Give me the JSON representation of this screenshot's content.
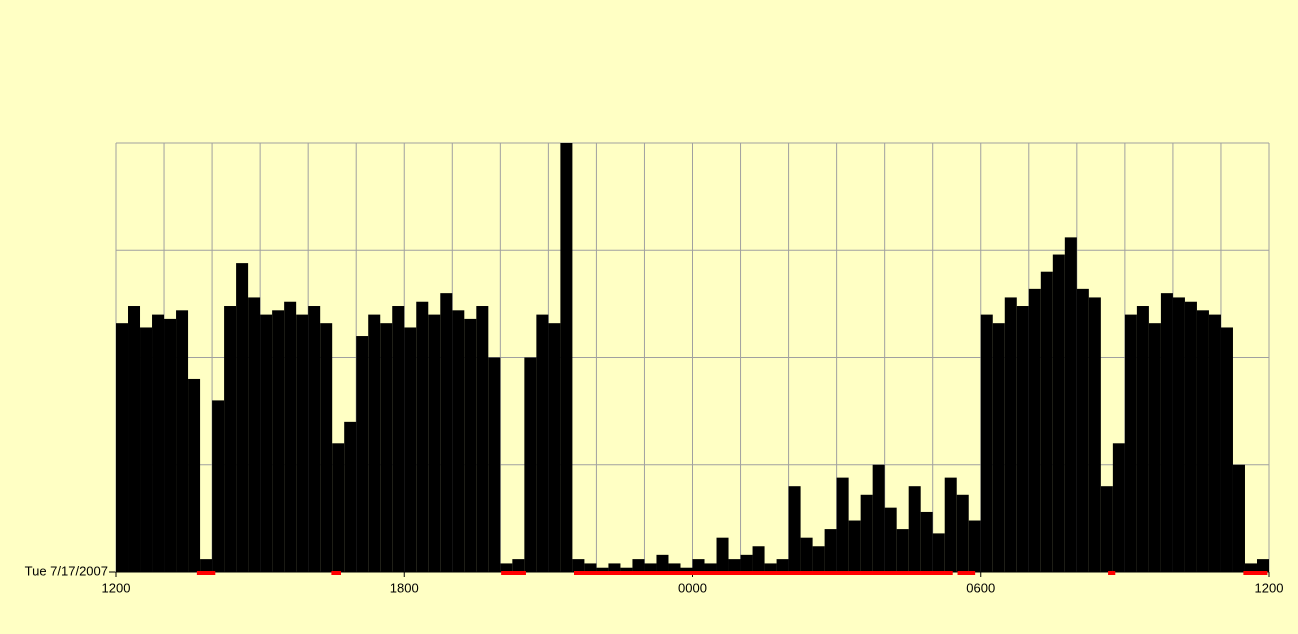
{
  "chart_data": {
    "type": "histogram",
    "date_label": "Tue 7/17/2007",
    "bins": [
      0,
      15,
      30,
      45,
      60,
      75,
      90,
      105,
      120,
      135,
      150,
      165,
      180,
      195,
      210,
      225,
      240,
      255,
      270,
      285,
      300,
      315,
      330,
      345,
      360,
      375,
      390,
      405,
      420,
      435,
      450,
      465,
      480,
      495,
      510,
      525,
      540,
      555,
      570,
      585,
      600,
      615,
      630,
      645,
      660,
      675,
      690,
      705,
      720,
      735,
      750,
      765,
      780,
      795,
      810,
      825,
      840,
      855,
      870,
      885,
      900,
      915,
      930,
      945,
      960,
      975,
      990,
      1005,
      1020,
      1035,
      1050,
      1065,
      1080,
      1095,
      1110,
      1125,
      1140,
      1155,
      1170,
      1185,
      1200,
      1215,
      1230,
      1245,
      1260,
      1275,
      1290,
      1305,
      1320,
      1335,
      1350,
      1365,
      1380,
      1395,
      1410,
      1425,
      1440
    ],
    "values": [
      58,
      62,
      57,
      60,
      59,
      61,
      45,
      3,
      40,
      62,
      72,
      64,
      60,
      61,
      63,
      60,
      62,
      58,
      30,
      35,
      55,
      60,
      58,
      62,
      57,
      63,
      60,
      65,
      61,
      59,
      62,
      50,
      2,
      3,
      50,
      60,
      58,
      100,
      3,
      2,
      1,
      2,
      1,
      3,
      2,
      4,
      2,
      1,
      3,
      2,
      8,
      3,
      4,
      6,
      2,
      3,
      20,
      8,
      6,
      10,
      22,
      12,
      18,
      25,
      15,
      10,
      20,
      14,
      9,
      22,
      18,
      12,
      60,
      58,
      64,
      62,
      66,
      70,
      74,
      78,
      66,
      64,
      20,
      30,
      60,
      62,
      58,
      65,
      64,
      63,
      61,
      60,
      57,
      25,
      2,
      3
    ],
    "color": "#000000",
    "idle_periods": [
      [
        101,
        124
      ],
      [
        269,
        281
      ],
      [
        481,
        512
      ],
      [
        572,
        1045
      ],
      [
        1051,
        1073
      ],
      [
        1239,
        1248
      ],
      [
        1408,
        1438
      ]
    ],
    "idle_color": "#ff0000",
    "xlim": [
      0,
      1440
    ],
    "xticks": [
      {
        "value": 0,
        "label": "1200"
      },
      {
        "value": 360,
        "label": "1800"
      },
      {
        "value": 720,
        "label": "0000"
      },
      {
        "value": 1080,
        "label": "0600"
      },
      {
        "value": 1440,
        "label": "1200"
      }
    ],
    "xgrid_step": 60,
    "ylim": [
      0,
      100
    ],
    "ygrid": [
      25,
      50,
      75,
      100
    ],
    "grid_color": "#a0a0a0"
  }
}
